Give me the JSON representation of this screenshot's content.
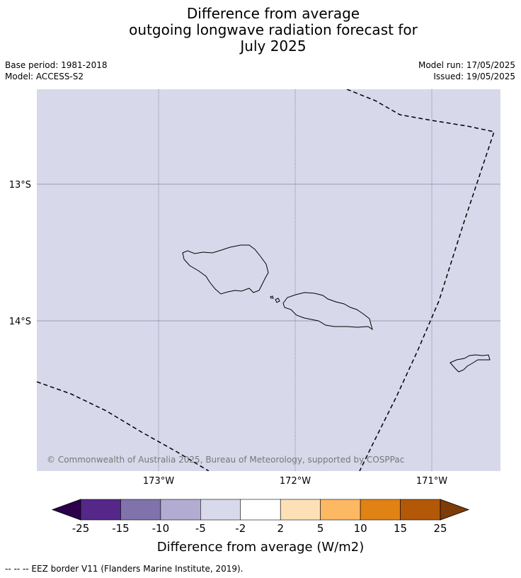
{
  "title": {
    "line1": "Difference from average",
    "line2": "outgoing longwave radiation forecast for",
    "line3": "July 2025"
  },
  "meta_left": {
    "base_period": "Base period: 1981-2018",
    "model": "Model: ACCESS-S2"
  },
  "meta_right": {
    "model_run": "Model run: 17/05/2025",
    "issued": "Issued: 19/05/2025"
  },
  "map": {
    "background_color": "#d8d8eb",
    "lat_labels": [
      "13°S",
      "14°S"
    ],
    "lon_labels": [
      "173°W",
      "172°W",
      "171°W"
    ],
    "copyright": "© Commonwealth of Australia 2025, Bureau of Meteorology, supported by COSPPac"
  },
  "colorbar": {
    "title": "Difference from average (W/m2)",
    "tick_labels": [
      "-25",
      "-15",
      "-10",
      "-5",
      "-2",
      "2",
      "5",
      "10",
      "15",
      "25"
    ],
    "colors": [
      "#2d004b",
      "#542788",
      "#8073ac",
      "#b2abd2",
      "#d8daeb",
      "#ffffff",
      "#fee0b6",
      "#fdb863",
      "#e08214",
      "#b35806",
      "#7f3b08"
    ]
  },
  "footnote": "--  --  -- EEZ border V11 (Flanders Marine Institute, 2019)."
}
